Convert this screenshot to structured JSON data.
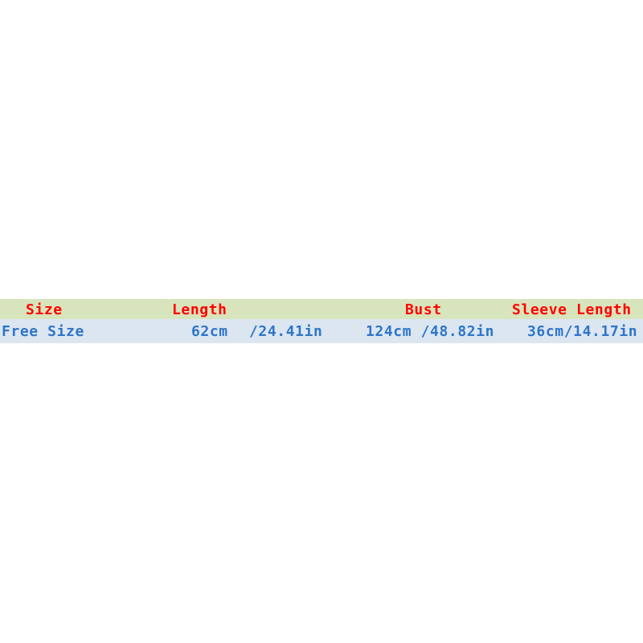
{
  "table": {
    "headers": [
      "Size",
      "Length",
      "Bust",
      "Sleeve Length"
    ],
    "rows": [
      {
        "size": "Free Size",
        "length_cm": "62cm",
        "length_in": "/24.41in",
        "bust": "124cm /48.82in",
        "sleeve": "36cm/14.17in"
      }
    ]
  },
  "colors": {
    "header_bg": "#d8e4bc",
    "row_bg": "#dce6f1",
    "header_text": "#ff0000",
    "row_text": "#2e75c9"
  }
}
